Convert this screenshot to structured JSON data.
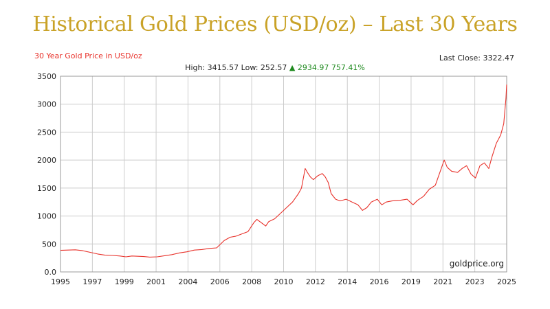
{
  "title": "Historical Gold Prices (USD/oz) – Last 30 Years",
  "subtitle": "30 Year Gold Price in USD/oz",
  "last_close": "Last Close: 3322.47",
  "stats": {
    "high": "High: 3415.57",
    "low": "Low: 252.57",
    "arrow": "▲",
    "change": "2934.97 757.41%"
  },
  "watermark": "goldprice.org",
  "colors": {
    "line": "#e8312a",
    "title": "#c9a227",
    "grid": "#cccccc",
    "up": "#1f8a1f"
  },
  "chart_data": {
    "type": "line",
    "title": "30 Year Gold Price in USD/oz",
    "xlabel": "",
    "ylabel": "",
    "xlim": [
      1995,
      2025
    ],
    "ylim": [
      0,
      3500
    ],
    "grid": true,
    "x_ticks": [
      "1995",
      "1997",
      "1999",
      "2001",
      "2004",
      "2006",
      "2008",
      "2010",
      "2012",
      "2014",
      "2016",
      "2019",
      "2021",
      "2023",
      "2025"
    ],
    "y_ticks": [
      "0.0",
      "500",
      "1000",
      "1500",
      "2000",
      "2500",
      "3000",
      "3500"
    ],
    "series": [
      {
        "x": [
          1995.0,
          1995.5,
          1996.0,
          1996.5,
          1997.0,
          1997.5,
          1998.0,
          1998.5,
          1999.0,
          1999.4,
          1999.8,
          2000.2,
          2000.6,
          2001.0,
          2001.5,
          2002.0,
          2002.5,
          2003.0,
          2003.5,
          2004.0,
          2004.5,
          2005.0,
          2005.5,
          2006.0,
          2006.4,
          2006.8,
          2007.2,
          2007.6,
          2008.0,
          2008.2,
          2008.5,
          2008.8,
          2009.0,
          2009.4,
          2009.8,
          2010.2,
          2010.6,
          2011.0,
          2011.2,
          2011.45,
          2011.6,
          2011.8,
          2012.0,
          2012.3,
          2012.6,
          2012.8,
          2013.0,
          2013.2,
          2013.5,
          2013.8,
          2014.2,
          2014.6,
          2015.0,
          2015.3,
          2015.6,
          2015.9,
          2016.3,
          2016.6,
          2016.9,
          2017.3,
          2017.8,
          2018.3,
          2018.7,
          2019.0,
          2019.4,
          2019.8,
          2020.2,
          2020.6,
          2020.8,
          2021.0,
          2021.3,
          2021.7,
          2022.0,
          2022.3,
          2022.6,
          2022.9,
          2023.2,
          2023.5,
          2023.8,
          2024.0,
          2024.3,
          2024.6,
          2024.8,
          2024.95,
          2025.0
        ],
        "y": [
          385,
          390,
          395,
          380,
          350,
          320,
          300,
          295,
          285,
          270,
          285,
          280,
          275,
          265,
          270,
          290,
          310,
          340,
          360,
          390,
          400,
          420,
          430,
          560,
          620,
          640,
          680,
          720,
          880,
          940,
          880,
          820,
          900,
          950,
          1050,
          1150,
          1250,
          1400,
          1500,
          1850,
          1780,
          1700,
          1650,
          1720,
          1760,
          1700,
          1600,
          1400,
          1300,
          1270,
          1300,
          1250,
          1200,
          1100,
          1150,
          1250,
          1300,
          1200,
          1250,
          1270,
          1280,
          1300,
          1200,
          1280,
          1350,
          1480,
          1550,
          1850,
          2000,
          1870,
          1800,
          1780,
          1850,
          1900,
          1750,
          1680,
          1900,
          1950,
          1850,
          2050,
          2300,
          2450,
          2650,
          3100,
          3350
        ]
      }
    ]
  }
}
